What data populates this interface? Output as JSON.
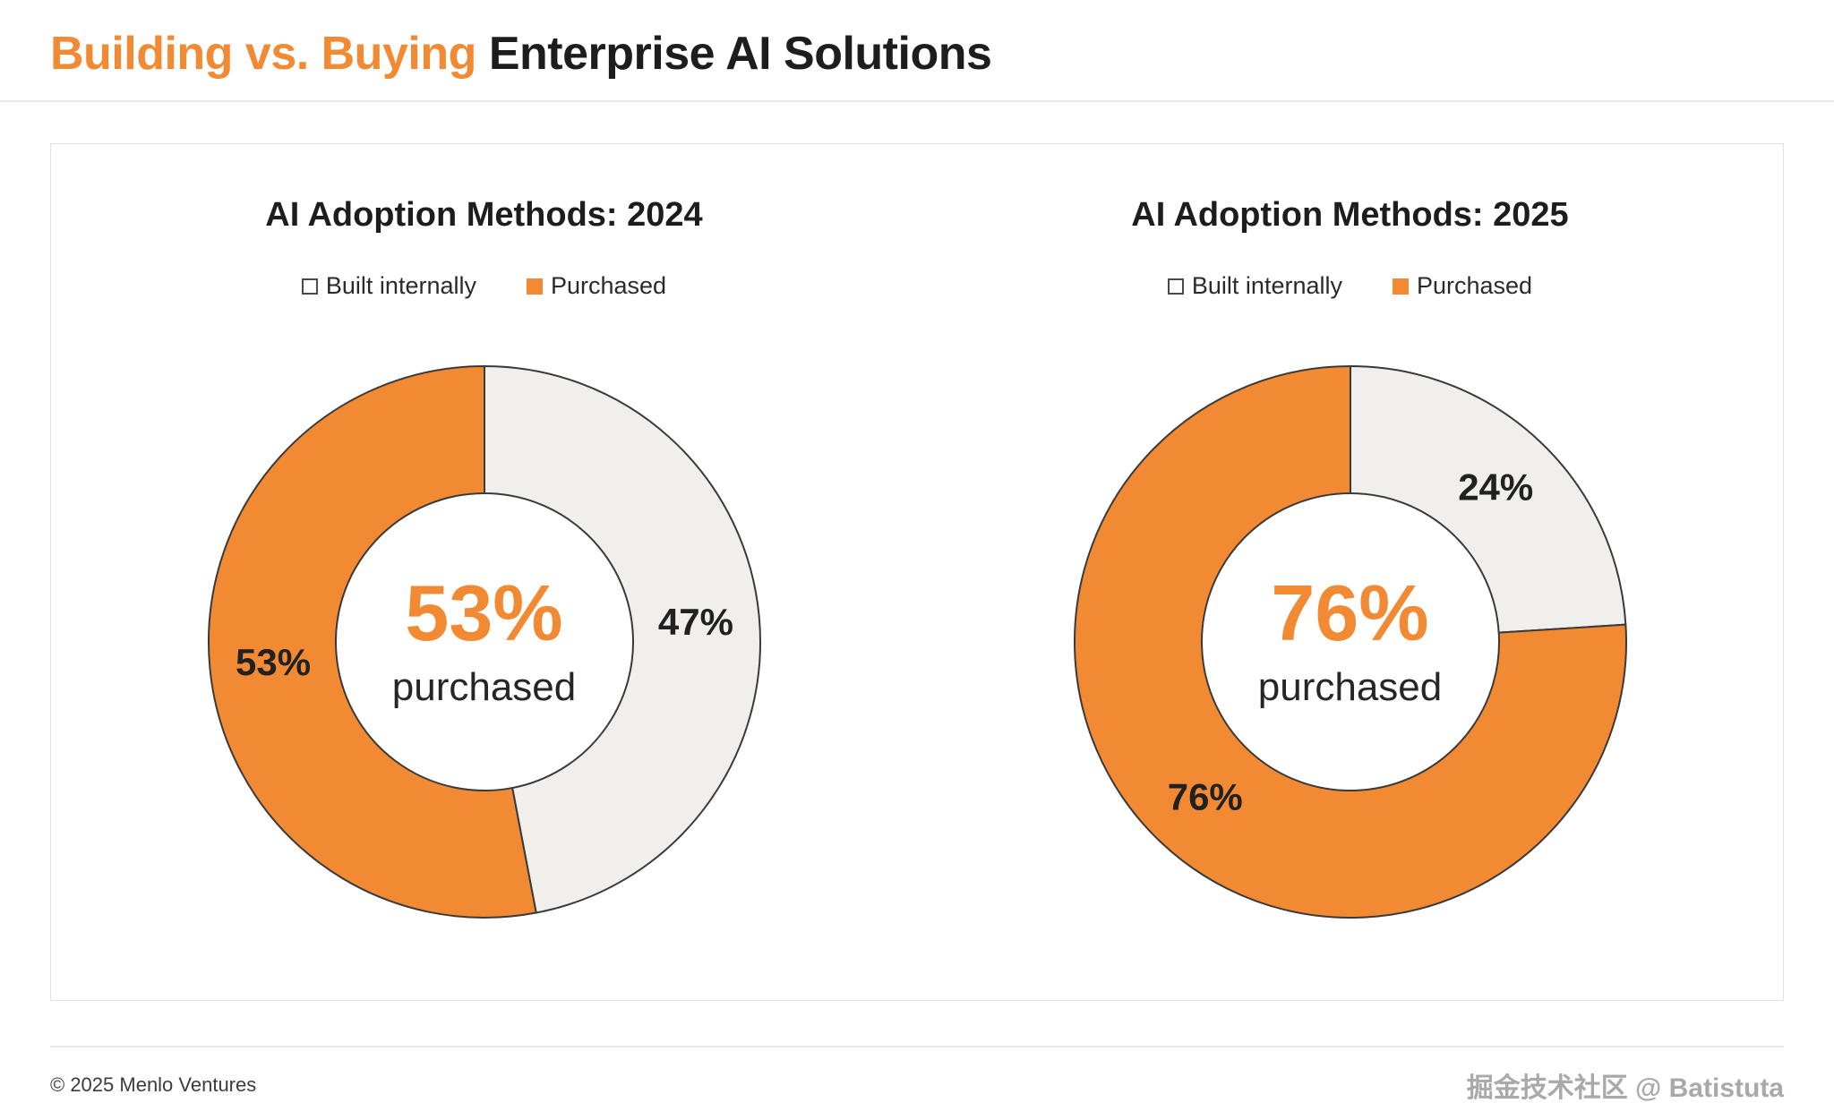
{
  "page": {
    "title": {
      "highlight": "Building vs. Buying",
      "rest": "Enterprise AI Solutions"
    },
    "footer_copyright": "© 2025 Menlo Ventures",
    "watermark": "掘金技术社区 @ Batistuta"
  },
  "colors": {
    "accent_orange": "#F28A33",
    "built_gray": "#F0EFEC",
    "segment_stroke": "#3A3A3A",
    "text_dark": "#212121"
  },
  "chart_data": [
    {
      "type": "pie",
      "donut": true,
      "title": "AI Adoption Methods: 2024",
      "legend": [
        "Built internally",
        "Purchased"
      ],
      "series": [
        {
          "name": "Built internally",
          "value": 47
        },
        {
          "name": "Purchased",
          "value": 53
        }
      ],
      "slice_labels": [
        "47%",
        "53%"
      ],
      "center_value": "53%",
      "center_label": "purchased",
      "start_angle_deg": 0,
      "direction": "clockwise"
    },
    {
      "type": "pie",
      "donut": true,
      "title": "AI Adoption Methods: 2025",
      "legend": [
        "Built internally",
        "Purchased"
      ],
      "series": [
        {
          "name": "Built internally",
          "value": 24
        },
        {
          "name": "Purchased",
          "value": 76
        }
      ],
      "slice_labels": [
        "24%",
        "76%"
      ],
      "center_value": "76%",
      "center_label": "purchased",
      "start_angle_deg": 0,
      "direction": "clockwise"
    }
  ]
}
